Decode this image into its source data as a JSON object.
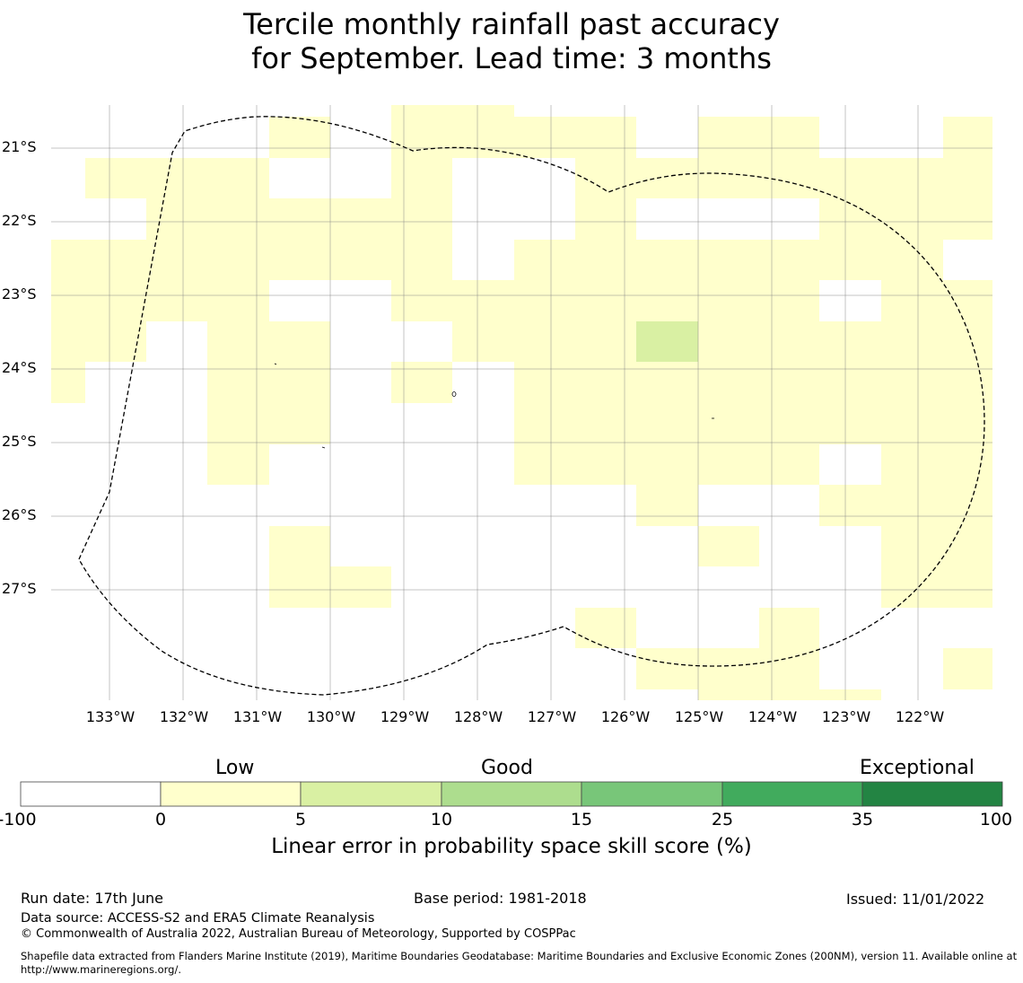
{
  "title_line1": "Tercile monthly rainfall past accuracy",
  "title_line2": "for September. Lead time: 3 months",
  "map": {
    "lat_labels": [
      "21°S",
      "22°S",
      "23°S",
      "24°S",
      "25°S",
      "26°S",
      "27°S"
    ],
    "lon_labels": [
      "133°W",
      "132°W",
      "131°W",
      "130°W",
      "129°W",
      "128°W",
      "127°W",
      "126°W",
      "125°W",
      "124°W",
      "123°W",
      "122°W"
    ],
    "cell_colors": {
      "low": "#ffffcc",
      "good": "#d9f0a3"
    },
    "grid": true
  },
  "colorbar": {
    "category_labels": [
      "Low",
      "Good",
      "Exceptional"
    ],
    "ticks": [
      "-100",
      "0",
      "5",
      "10",
      "15",
      "25",
      "35",
      "100"
    ],
    "colors": [
      "#ffffff",
      "#ffffcc",
      "#d9f0a3",
      "#addd8e",
      "#78c679",
      "#41ab5d",
      "#238443"
    ],
    "title": "Linear error in probability space skill score (%)"
  },
  "footer": {
    "run_date": "Run date: 17th June",
    "base_period": "Base period: 1981-2018",
    "issued": "Issued: 11/01/2022",
    "data_source": "Data source: ACCESS-S2 and ERA5 Climate Reanalysis",
    "copyright": "© Commonwealth of Australia 2022, Australian Bureau of Meteorology, Supported by COSPPac",
    "shapefile_note": "Shapefile data extracted from Flanders Marine Institute (2019), Maritime Boundaries Geodatabase: Maritime Boundaries and Exclusive Economic Zones (200NM), version 11. Available online at http://www.marineregions.org/."
  }
}
